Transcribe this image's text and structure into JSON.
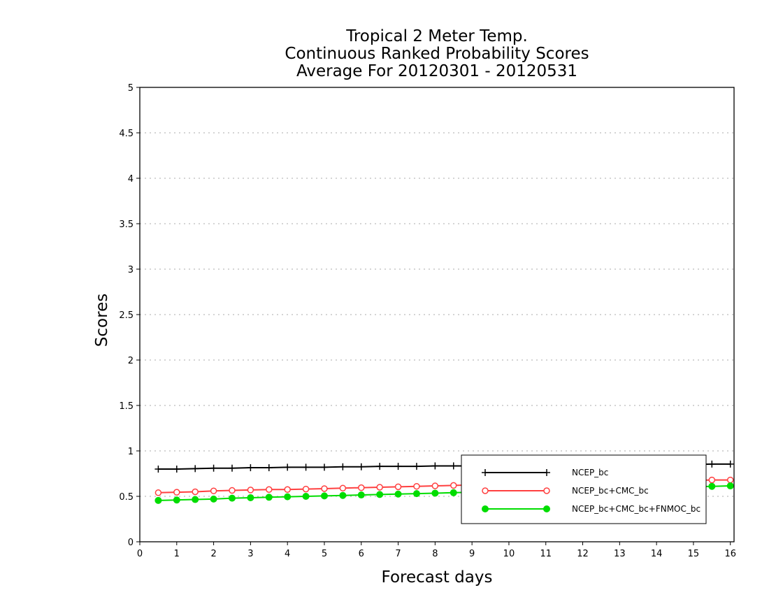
{
  "chart_data": {
    "type": "line",
    "title": [
      "Tropical 2 Meter Temp.",
      "Continuous Ranked Probability Scores",
      "Average For 20120301 - 20120531"
    ],
    "xlabel": "Forecast days",
    "ylabel": "Scores",
    "xlim": [
      0,
      16.1
    ],
    "ylim": [
      0,
      5
    ],
    "xticks": [
      0,
      1,
      2,
      3,
      4,
      5,
      6,
      7,
      8,
      9,
      10,
      11,
      12,
      13,
      14,
      15,
      16
    ],
    "yticks": [
      0,
      0.5,
      1,
      1.5,
      2,
      2.5,
      3,
      3.5,
      4,
      4.5,
      5
    ],
    "ytick_labels": [
      "0",
      "0.5",
      "1",
      "1.5",
      "2",
      "2.5",
      "3",
      "3.5",
      "4",
      "4.5",
      "5"
    ],
    "grid": "horizontal dotted",
    "legend_position": "bottom-right",
    "x": [
      0.5,
      1,
      1.5,
      2,
      2.5,
      3,
      3.5,
      4,
      4.5,
      5,
      5.5,
      6,
      6.5,
      7,
      7.5,
      8,
      8.5,
      9,
      9.5,
      10,
      10.5,
      11,
      11.5,
      12,
      12.5,
      13,
      13.5,
      14,
      14.5,
      15,
      15.5,
      16
    ],
    "series": [
      {
        "name": "NCEP_bc",
        "color": "#000000",
        "marker": "plus",
        "values": [
          0.8,
          0.8,
          0.805,
          0.81,
          0.81,
          0.815,
          0.815,
          0.82,
          0.82,
          0.82,
          0.825,
          0.825,
          0.83,
          0.83,
          0.83,
          0.835,
          0.835,
          0.835,
          0.84,
          0.84,
          0.84,
          0.84,
          0.845,
          0.845,
          0.845,
          0.845,
          0.85,
          0.85,
          0.85,
          0.85,
          0.855,
          0.855
        ]
      },
      {
        "name": "NCEP_bc+CMC_bc",
        "color": "#ff4040",
        "marker": "open-circle",
        "values": [
          0.54,
          0.545,
          0.55,
          0.56,
          0.565,
          0.57,
          0.575,
          0.575,
          0.58,
          0.585,
          0.59,
          0.595,
          0.6,
          0.605,
          0.61,
          0.615,
          0.62,
          0.625,
          0.63,
          0.635,
          0.64,
          0.645,
          0.65,
          0.65,
          0.655,
          0.66,
          0.665,
          0.67,
          0.67,
          0.675,
          0.68,
          0.68
        ]
      },
      {
        "name": "NCEP_bc+CMC_bc+FNMOC_bc",
        "color": "#00dd00",
        "marker": "filled-circle",
        "values": [
          0.455,
          0.46,
          0.465,
          0.47,
          0.48,
          0.485,
          0.49,
          0.495,
          0.5,
          0.505,
          0.51,
          0.515,
          0.52,
          0.525,
          0.53,
          0.535,
          0.54,
          0.545,
          0.55,
          0.555,
          0.56,
          0.565,
          0.57,
          0.575,
          0.58,
          0.585,
          0.59,
          0.595,
          0.6,
          0.605,
          0.61,
          0.615
        ]
      }
    ]
  }
}
